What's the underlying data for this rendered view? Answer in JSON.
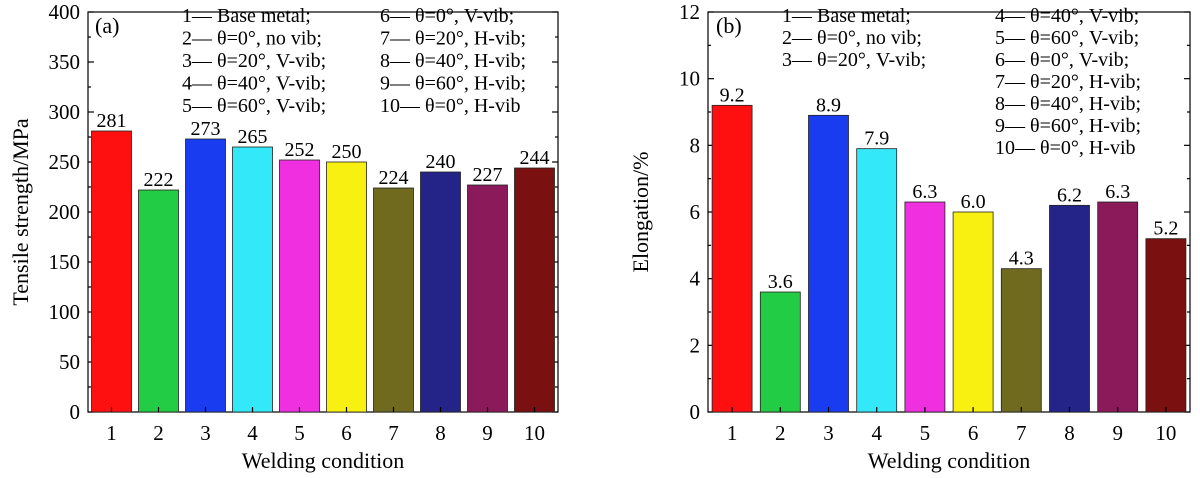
{
  "chart_data": [
    {
      "type": "bar",
      "panel_label": "(a)",
      "categories": [
        "1",
        "2",
        "3",
        "4",
        "5",
        "6",
        "7",
        "8",
        "9",
        "10"
      ],
      "values": [
        281,
        222,
        273,
        265,
        252,
        250,
        224,
        240,
        227,
        244
      ],
      "value_labels": [
        "281",
        "222",
        "273",
        "265",
        "252",
        "250",
        "224",
        "240",
        "227",
        "244"
      ],
      "colors": [
        "#ff1010",
        "#22cc44",
        "#1a3cf0",
        "#33e8f8",
        "#f030e0",
        "#f8f010",
        "#6f6a1e",
        "#242488",
        "#8a1a5a",
        "#7a1010"
      ],
      "xlabel": "Welding condition",
      "ylabel": "Tensile strength/MPa",
      "ylim": [
        0,
        400
      ],
      "yticks": [
        "0",
        "50",
        "100",
        "150",
        "200",
        "250",
        "300",
        "350",
        "400"
      ],
      "legend": [
        "1— Base metal;",
        "2— θ=0°, no vib;",
        "3— θ=20°, V-vib;",
        "4— θ=40°, V-vib;",
        "5— θ=60°, V-vib;",
        "6— θ=0°, V-vib;",
        "7— θ=20°, H-vib;",
        "8— θ=40°, H-vib;",
        "9— θ=60°, H-vib;",
        "10— θ=0°, H-vib"
      ],
      "legend_placement": "top-right",
      "grid": false
    },
    {
      "type": "bar",
      "panel_label": "(b)",
      "categories": [
        "1",
        "2",
        "3",
        "4",
        "5",
        "6",
        "7",
        "8",
        "9",
        "10"
      ],
      "values": [
        9.2,
        3.6,
        8.9,
        7.9,
        6.3,
        6.0,
        4.3,
        6.2,
        6.3,
        5.2
      ],
      "value_labels": [
        "9.2",
        "3.6",
        "8.9",
        "7.9",
        "6.3",
        "6.0",
        "4.3",
        "6.2",
        "6.3",
        "5.2"
      ],
      "colors": [
        "#ff1010",
        "#22cc44",
        "#1a3cf0",
        "#33e8f8",
        "#f030e0",
        "#f8f010",
        "#6f6a1e",
        "#242488",
        "#8a1a5a",
        "#7a1010"
      ],
      "xlabel": "Welding condition",
      "ylabel": "Elongation/%",
      "ylim": [
        0,
        12
      ],
      "yticks": [
        "0",
        "2",
        "4",
        "6",
        "8",
        "10",
        "12"
      ],
      "legend": [
        "1— Base metal;",
        "2— θ=0°, no vib;",
        "3— θ=20°, V-vib;",
        "4— θ=40°, V-vib;",
        "5— θ=60°, V-vib;",
        "6— θ=0°, V-vib;",
        "7— θ=20°, H-vib;",
        "8— θ=40°, H-vib;",
        "9— θ=60°, H-vib;",
        "10— θ=0°, H-vib"
      ],
      "legend_placement": "top-right",
      "grid": false
    }
  ]
}
